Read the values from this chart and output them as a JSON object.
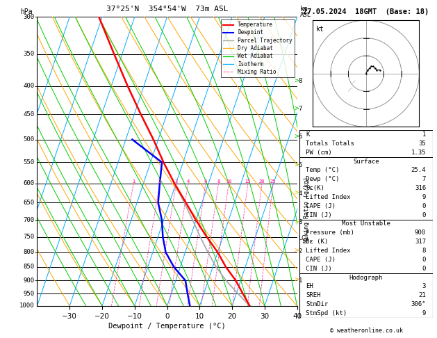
{
  "title_left": "37°25'N  354°54'W  73m ASL",
  "title_right": "27.05.2024  18GMT  (Base: 18)",
  "xlabel": "Dewpoint / Temperature (°C)",
  "pressure_levels": [
    300,
    350,
    400,
    450,
    500,
    550,
    600,
    650,
    700,
    750,
    800,
    850,
    900,
    950,
    1000
  ],
  "temp_ticks": [
    -30,
    -20,
    -10,
    0,
    10,
    20,
    30,
    40
  ],
  "PMIN": 300,
  "PMAX": 1000,
  "TMIN": -40,
  "TMAX": 40,
  "SKEW": 30,
  "km_ticks": [
    1,
    2,
    3,
    4,
    5,
    6,
    7,
    8
  ],
  "km_pressures": [
    899,
    796,
    706,
    626,
    556,
    494,
    440,
    392
  ],
  "lcl_pressure": 755,
  "temperature_data": {
    "pressure": [
      1000,
      950,
      900,
      850,
      800,
      750,
      700,
      650,
      600,
      550,
      500,
      450,
      400,
      350,
      300
    ],
    "temp": [
      25.4,
      22.0,
      18.5,
      14.0,
      10.0,
      5.0,
      0.0,
      -5.0,
      -10.5,
      -16.0,
      -21.5,
      -28.0,
      -35.0,
      -42.5,
      -51.0
    ]
  },
  "dewpoint_data": {
    "pressure": [
      1000,
      950,
      900,
      850,
      800,
      750,
      700,
      650,
      600,
      550,
      500
    ],
    "temp": [
      7.0,
      5.0,
      3.0,
      -2.0,
      -6.0,
      -8.5,
      -10.5,
      -13.5,
      -15.0,
      -16.5,
      -28.0
    ]
  },
  "parcel_data": {
    "pressure": [
      1000,
      950,
      900,
      850,
      800,
      750,
      700,
      650,
      600,
      550,
      500,
      450,
      400,
      350,
      300
    ],
    "temp": [
      25.4,
      20.5,
      15.5,
      11.0,
      7.0,
      3.0,
      -1.0,
      -5.5,
      -10.5,
      -16.0,
      -21.5,
      -28.0,
      -35.0,
      -42.5,
      -51.0
    ]
  },
  "mixing_ratio_values": [
    1,
    2,
    3,
    4,
    6,
    8,
    10,
    15,
    20,
    25
  ],
  "colors": {
    "temperature": "#ff0000",
    "dewpoint": "#0000ff",
    "parcel": "#aaaaaa",
    "dry_adiabat": "#ffa500",
    "wet_adiabat": "#00cc00",
    "isotherm": "#00aaff",
    "mixing_ratio": "#ff44aa",
    "background": "#ffffff",
    "grid": "#000000"
  },
  "stats": {
    "K": "1",
    "Totals_Totals": "35",
    "PW_cm": "1.35",
    "Surface_Temp": "25.4",
    "Surface_Dewp": "7",
    "Surface_theta_e": "316",
    "Surface_LI": "9",
    "Surface_CAPE": "0",
    "Surface_CIN": "0",
    "MU_Pressure": "900",
    "MU_theta_e": "317",
    "MU_LI": "8",
    "MU_CAPE": "0",
    "MU_CIN": "0",
    "EH": "3",
    "SREH": "21",
    "StmDir": "306",
    "StmSpd": "9"
  }
}
